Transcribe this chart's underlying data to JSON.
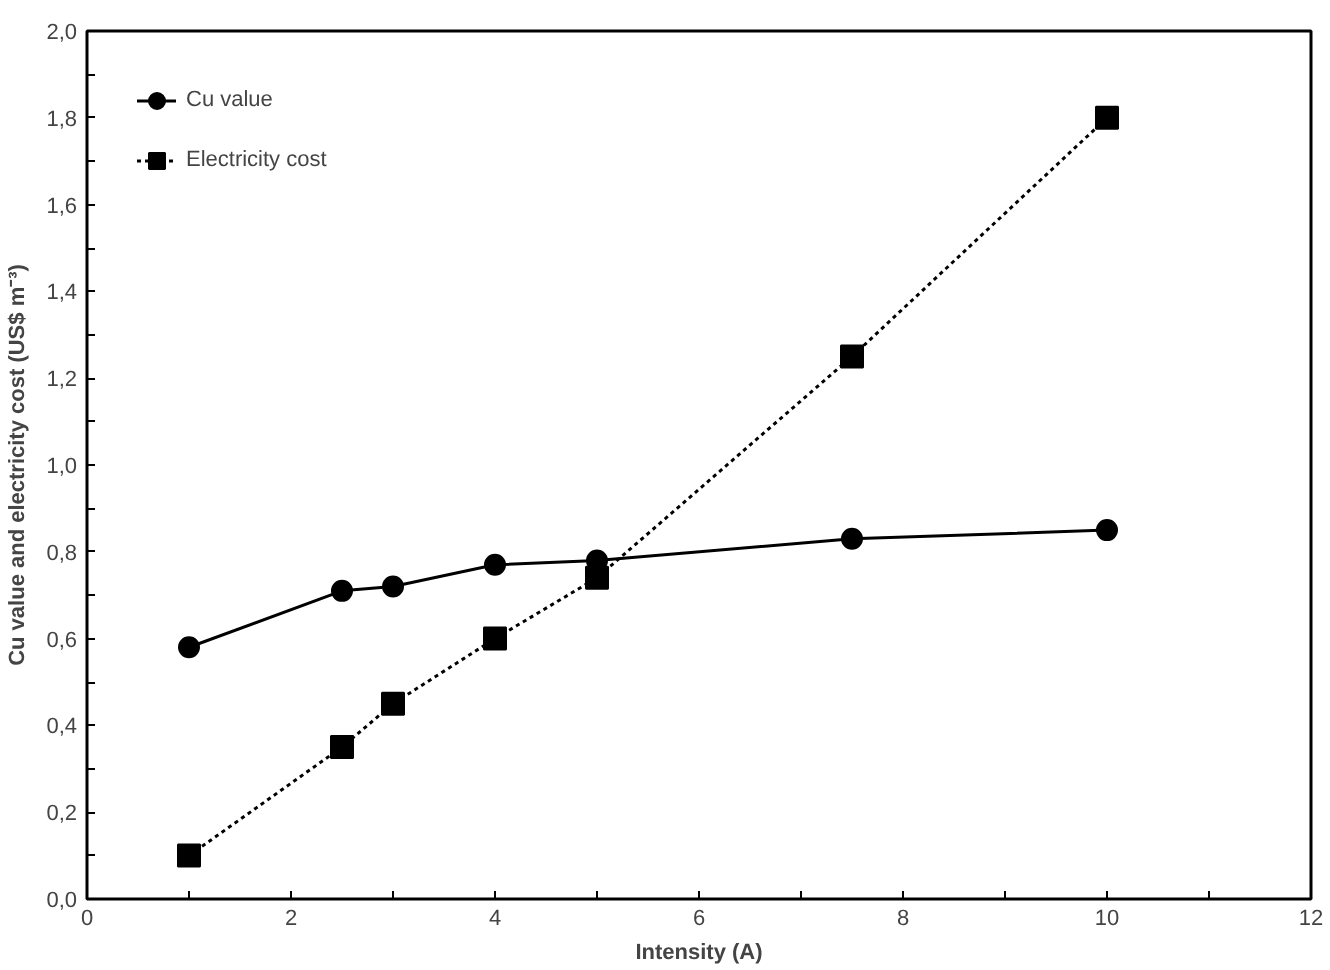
{
  "chart_data": {
    "type": "line",
    "xlabel": "Intensity (A)",
    "ylabel": "Cu value and electricity cost (US$ m⁻³)",
    "xlim": [
      0,
      12
    ],
    "ylim": [
      0,
      2
    ],
    "xticks": [
      0,
      {
        "value": 1,
        "label": null
      },
      2,
      {
        "value": 3,
        "label": null
      },
      4,
      {
        "value": 5,
        "label": null
      },
      6,
      {
        "value": 7,
        "label": null
      },
      8,
      {
        "value": 9,
        "label": null
      },
      10,
      {
        "value": 11,
        "label": null
      },
      12
    ],
    "yticks": [
      {
        "value": 0,
        "label": "0,0"
      },
      {
        "value": 0.1,
        "label": null
      },
      {
        "value": 0.2,
        "label": "0,2"
      },
      {
        "value": 0.3,
        "label": null
      },
      {
        "value": 0.4,
        "label": "0,4"
      },
      {
        "value": 0.5,
        "label": null
      },
      {
        "value": 0.6,
        "label": "0,6"
      },
      {
        "value": 0.7,
        "label": null
      },
      {
        "value": 0.8,
        "label": "0,8"
      },
      {
        "value": 0.9,
        "label": null
      },
      {
        "value": 1.0,
        "label": "1,0"
      },
      {
        "value": 1.1,
        "label": null
      },
      {
        "value": 1.2,
        "label": "1,2"
      },
      {
        "value": 1.3,
        "label": null
      },
      {
        "value": 1.4,
        "label": "1,4"
      },
      {
        "value": 1.5,
        "label": null
      },
      {
        "value": 1.6,
        "label": "1,6"
      },
      {
        "value": 1.7,
        "label": null
      },
      {
        "value": 1.8,
        "label": "1,8"
      },
      {
        "value": 1.9,
        "label": null
      },
      {
        "value": 2.0,
        "label": "2,0"
      }
    ],
    "x": [
      1,
      2.5,
      3,
      4,
      5,
      7.5,
      10
    ],
    "series": [
      {
        "name": "Cu value",
        "color": "#000000",
        "marker": "circle",
        "line_style": "solid",
        "values": [
          0.58,
          0.71,
          0.72,
          0.77,
          0.78,
          0.83,
          0.85
        ]
      },
      {
        "name": "Electricity cost",
        "color": "#000000",
        "marker": "square",
        "line_style": "dotted",
        "values": [
          0.1,
          0.35,
          0.45,
          0.6,
          0.74,
          1.25,
          1.8
        ]
      }
    ],
    "grid": false,
    "legend": "top left"
  }
}
